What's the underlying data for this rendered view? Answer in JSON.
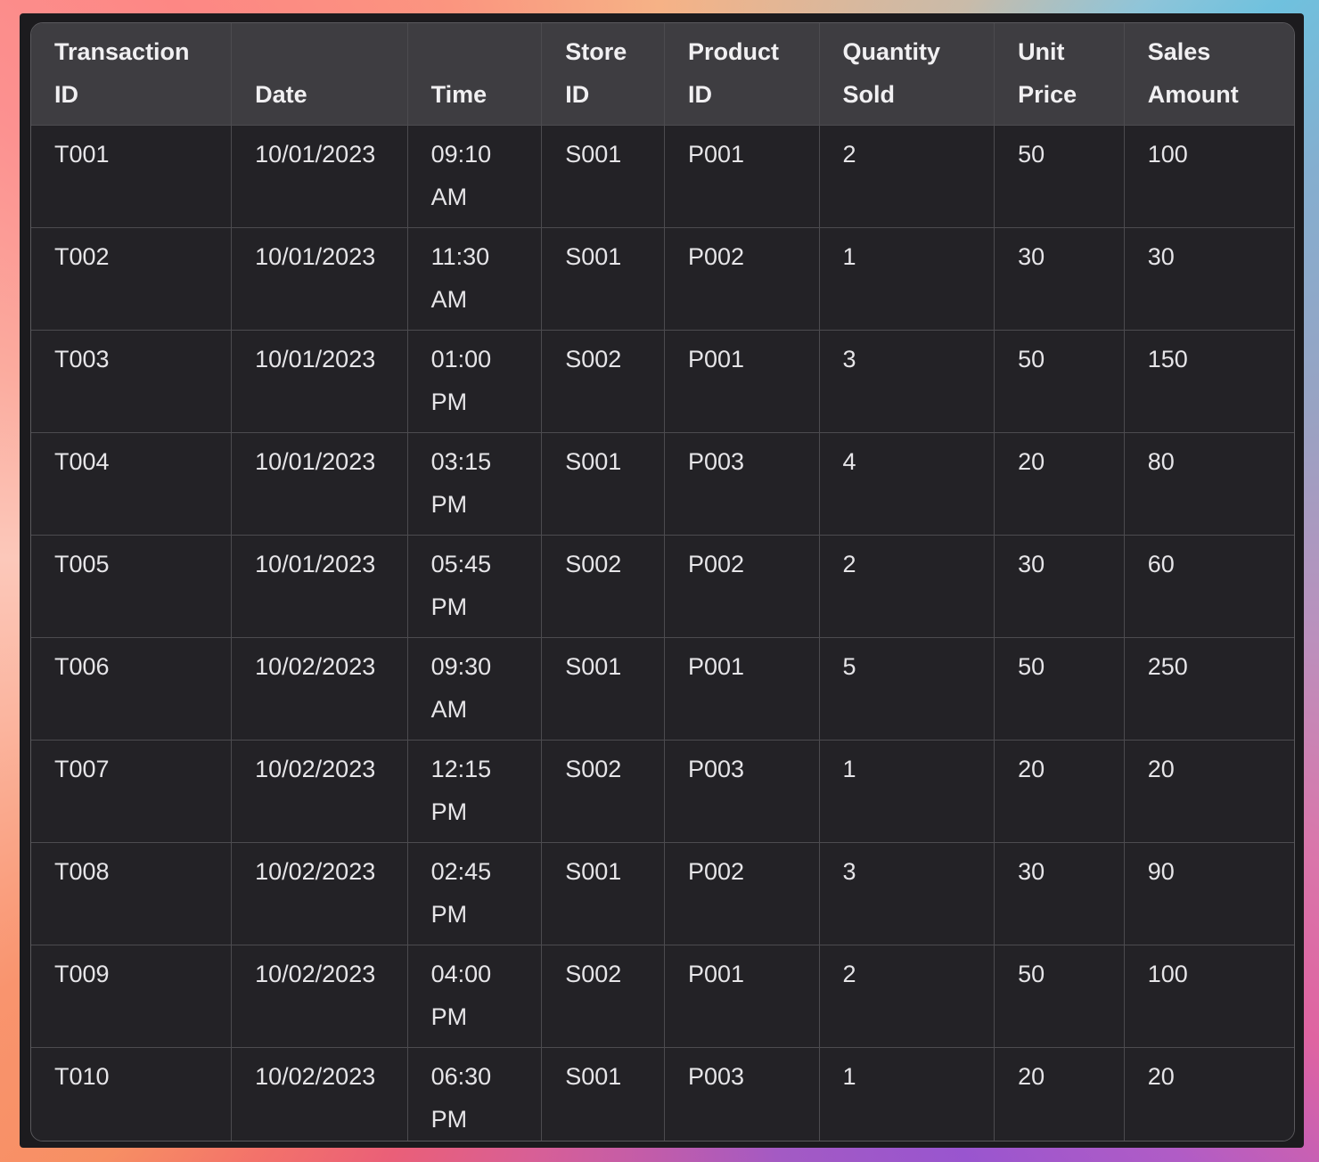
{
  "theme": {
    "colors": {
      "frame-bg": "#1c1b1e",
      "table-outline": "#5a595d",
      "grid-line": "#4c4b4f",
      "header-bg": "#3e3d41",
      "header-text": "#f1f0f2",
      "cell-bg": "#232226",
      "cell-text": "#e6e5e8"
    },
    "border_gradient_colors": [
      "#fd8784",
      "#f6b286",
      "#6fc1de",
      "#98a3c3",
      "#d977ab",
      "#9955cf",
      "#d75f97",
      "#ea5f78",
      "#f78f63",
      "#fcc8ba"
    ]
  },
  "table": {
    "columns": [
      {
        "id": "transaction_id",
        "label": "Transaction ID"
      },
      {
        "id": "date",
        "label": "Date"
      },
      {
        "id": "time",
        "label": "Time"
      },
      {
        "id": "store_id",
        "label": "Store ID"
      },
      {
        "id": "product_id",
        "label": "Product ID"
      },
      {
        "id": "quantity_sold",
        "label": "Quantity Sold"
      },
      {
        "id": "unit_price",
        "label": "Unit Price"
      },
      {
        "id": "sales_amount",
        "label": "Sales Amount"
      }
    ],
    "rows": [
      [
        "T001",
        "10/01/2023",
        "09:10 AM",
        "S001",
        "P001",
        "2",
        "50",
        "100"
      ],
      [
        "T002",
        "10/01/2023",
        "11:30 AM",
        "S001",
        "P002",
        "1",
        "30",
        "30"
      ],
      [
        "T003",
        "10/01/2023",
        "01:00 PM",
        "S002",
        "P001",
        "3",
        "50",
        "150"
      ],
      [
        "T004",
        "10/01/2023",
        "03:15 PM",
        "S001",
        "P003",
        "4",
        "20",
        "80"
      ],
      [
        "T005",
        "10/01/2023",
        "05:45 PM",
        "S002",
        "P002",
        "2",
        "30",
        "60"
      ],
      [
        "T006",
        "10/02/2023",
        "09:30 AM",
        "S001",
        "P001",
        "5",
        "50",
        "250"
      ],
      [
        "T007",
        "10/02/2023",
        "12:15 PM",
        "S002",
        "P003",
        "1",
        "20",
        "20"
      ],
      [
        "T008",
        "10/02/2023",
        "02:45 PM",
        "S001",
        "P002",
        "3",
        "30",
        "90"
      ],
      [
        "T009",
        "10/02/2023",
        "04:00 PM",
        "S002",
        "P001",
        "2",
        "50",
        "100"
      ],
      [
        "T010",
        "10/02/2023",
        "06:30 PM",
        "S001",
        "P003",
        "1",
        "20",
        "20"
      ]
    ]
  }
}
